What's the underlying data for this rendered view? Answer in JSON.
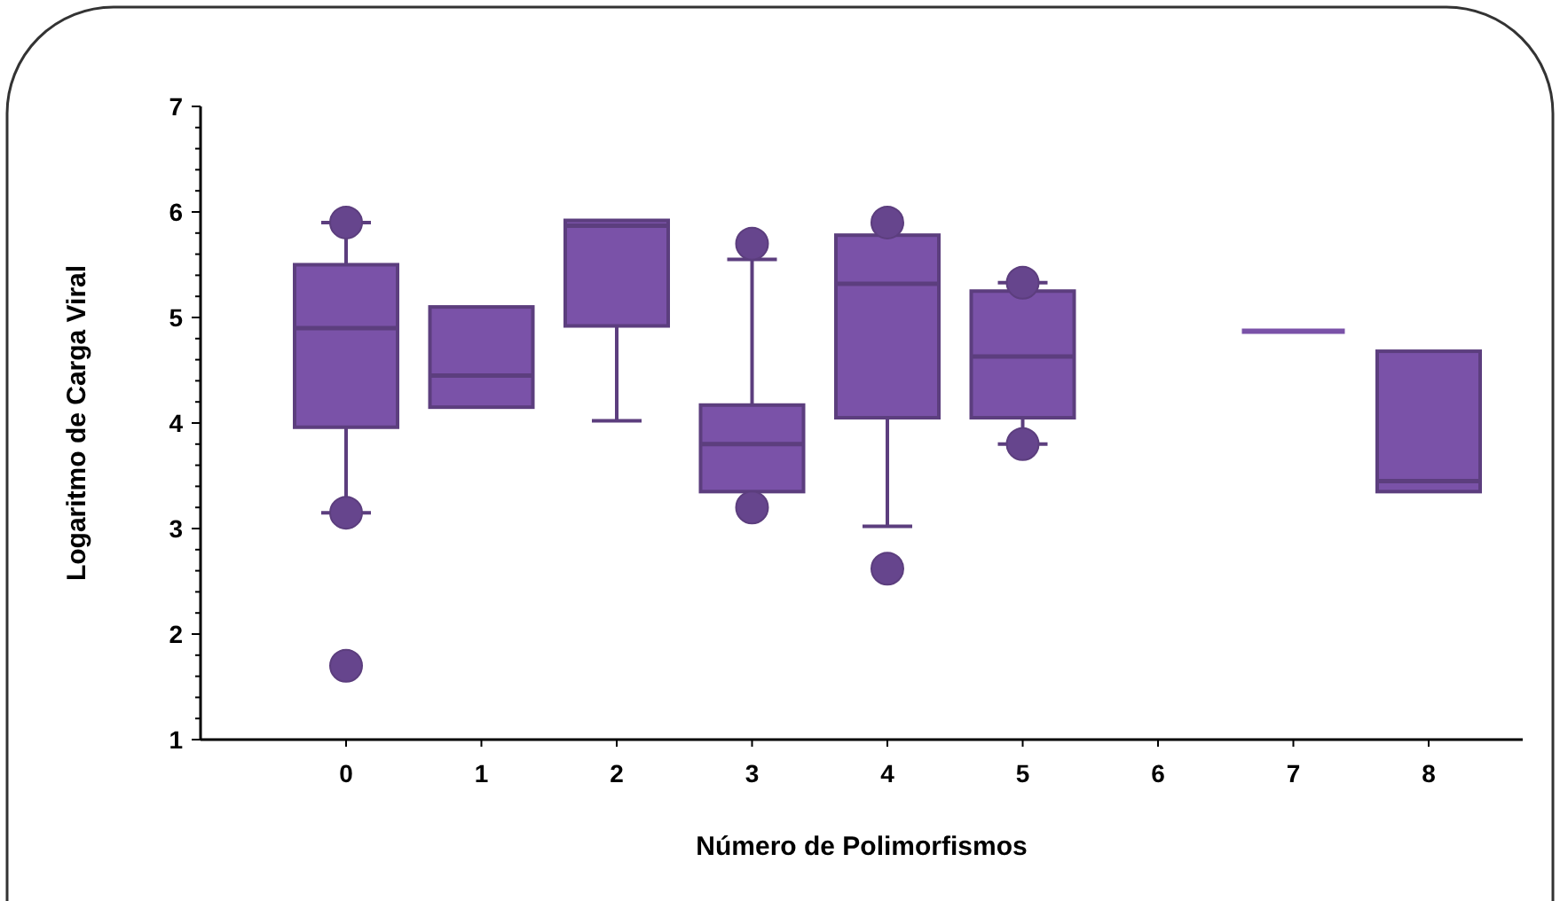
{
  "chart_data": {
    "type": "box",
    "xlabel": "Número de Polimorfismos",
    "ylabel": "Logaritmo de Carga Viral",
    "categories": [
      "0",
      "1",
      "2",
      "3",
      "4",
      "5",
      "6",
      "7",
      "8"
    ],
    "color": "#7a52a8",
    "boxes": [
      {
        "low": 3.15,
        "q1": 3.96,
        "median": 4.9,
        "q3": 5.5,
        "high": 5.9,
        "outliers": [
          5.9,
          3.15,
          1.7
        ]
      },
      {
        "low": 4.15,
        "q1": 4.15,
        "median": 4.45,
        "q3": 5.1,
        "high": 5.1
      },
      {
        "low": 4.02,
        "q1": 4.92,
        "median": 5.87,
        "q3": 5.92,
        "high": 5.92
      },
      {
        "low": 3.35,
        "q1": 3.35,
        "median": 3.8,
        "q3": 4.17,
        "high": 5.55,
        "outliers": [
          5.7,
          3.2
        ]
      },
      {
        "low": 3.02,
        "q1": 4.05,
        "median": 5.32,
        "q3": 5.78,
        "high": 5.78,
        "outliers": [
          5.9,
          2.62
        ]
      },
      {
        "low": 3.8,
        "q1": 4.05,
        "median": 4.63,
        "q3": 5.25,
        "high": 5.33,
        "outliers": [
          5.33,
          3.8
        ]
      },
      null,
      {
        "low": 4.87,
        "q1": 4.87,
        "median": 4.87,
        "q3": 4.87,
        "high": 4.87
      },
      {
        "low": 3.35,
        "q1": 3.35,
        "median": 3.45,
        "q3": 4.68,
        "high": 4.68
      }
    ],
    "ylim": [
      1,
      7
    ],
    "yticks": [
      1,
      2,
      3,
      4,
      5,
      6,
      7
    ],
    "grid": false
  }
}
